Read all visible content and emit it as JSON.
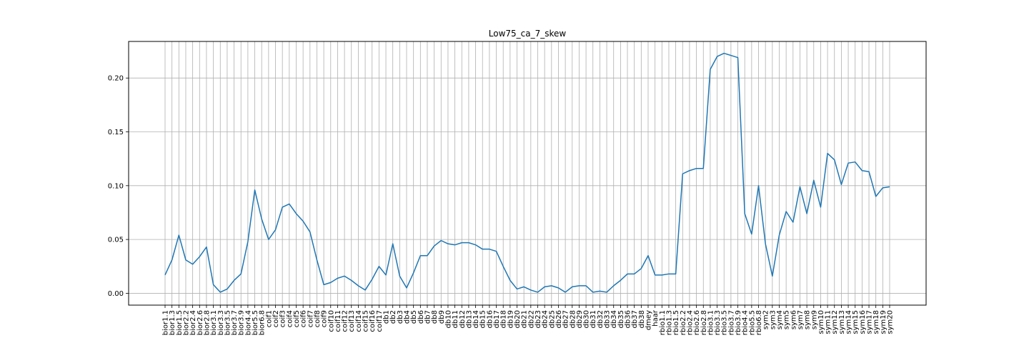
{
  "chart_data": {
    "type": "line",
    "title": "Low75_ca_7_skew",
    "xlabel": "",
    "ylabel": "",
    "ylim": [
      -0.011,
      0.234
    ],
    "yticks": [
      0.0,
      0.05,
      0.1,
      0.15,
      0.2
    ],
    "ytick_labels": [
      "0.00",
      "0.05",
      "0.10",
      "0.15",
      "0.20"
    ],
    "grid": true,
    "line_color": "#1f77b4",
    "grid_color": "#b0b0b0",
    "categories": [
      "bior1.1",
      "bior1.3",
      "bior1.5",
      "bior2.2",
      "bior2.4",
      "bior2.6",
      "bior2.8",
      "bior3.1",
      "bior3.3",
      "bior3.5",
      "bior3.7",
      "bior3.9",
      "bior4.4",
      "bior5.5",
      "bior6.8",
      "coif1",
      "coif2",
      "coif3",
      "coif4",
      "coif5",
      "coif6",
      "coif7",
      "coif8",
      "coif9",
      "coif10",
      "coif11",
      "coif12",
      "coif13",
      "coif14",
      "coif15",
      "coif16",
      "coif17",
      "db1",
      "db2",
      "db3",
      "db4",
      "db5",
      "db6",
      "db7",
      "db8",
      "db9",
      "db10",
      "db11",
      "db12",
      "db13",
      "db14",
      "db15",
      "db16",
      "db17",
      "db18",
      "db19",
      "db20",
      "db21",
      "db22",
      "db23",
      "db24",
      "db25",
      "db26",
      "db27",
      "db28",
      "db29",
      "db30",
      "db31",
      "db32",
      "db33",
      "db34",
      "db35",
      "db36",
      "db37",
      "db38",
      "dmey",
      "haar",
      "rbio1.1",
      "rbio1.3",
      "rbio1.5",
      "rbio2.2",
      "rbio2.4",
      "rbio2.6",
      "rbio2.8",
      "rbio3.1",
      "rbio3.3",
      "rbio3.5",
      "rbio3.7",
      "rbio3.9",
      "rbio4.4",
      "rbio5.5",
      "rbio6.8",
      "sym2",
      "sym3",
      "sym4",
      "sym5",
      "sym6",
      "sym7",
      "sym8",
      "sym9",
      "sym10",
      "sym11",
      "sym12",
      "sym13",
      "sym14",
      "sym15",
      "sym16",
      "sym17",
      "sym18",
      "sym19",
      "sym20"
    ],
    "values": [
      0.017,
      0.031,
      0.054,
      0.031,
      0.027,
      0.034,
      0.043,
      0.008,
      0.001,
      0.004,
      0.012,
      0.018,
      0.048,
      0.096,
      0.069,
      0.05,
      0.059,
      0.08,
      0.083,
      0.074,
      0.067,
      0.057,
      0.031,
      0.008,
      0.01,
      0.014,
      0.016,
      0.012,
      0.007,
      0.003,
      0.013,
      0.025,
      0.017,
      0.046,
      0.016,
      0.005,
      0.019,
      0.035,
      0.035,
      0.044,
      0.049,
      0.046,
      0.045,
      0.047,
      0.047,
      0.045,
      0.041,
      0.041,
      0.039,
      0.025,
      0.012,
      0.004,
      0.006,
      0.003,
      0.001,
      0.006,
      0.007,
      0.005,
      0.001,
      0.006,
      0.007,
      0.007,
      0.001,
      0.002,
      0.001,
      0.007,
      0.012,
      0.018,
      0.018,
      0.023,
      0.035,
      0.017,
      0.017,
      0.018,
      0.018,
      0.111,
      0.114,
      0.116,
      0.116,
      0.208,
      0.22,
      0.223,
      0.221,
      0.219,
      0.074,
      0.055,
      0.1,
      0.046,
      0.016,
      0.054,
      0.076,
      0.066,
      0.099,
      0.074,
      0.105,
      0.08,
      0.13,
      0.124,
      0.101,
      0.121,
      0.122,
      0.114,
      0.113,
      0.09,
      0.098,
      0.099
    ]
  }
}
